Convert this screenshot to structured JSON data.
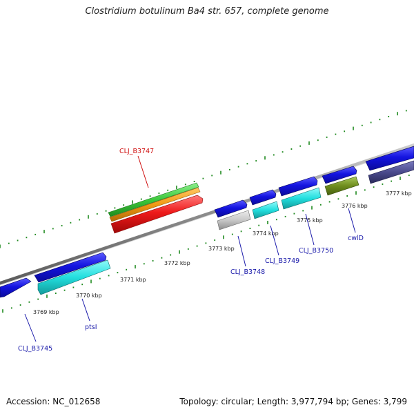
{
  "title": "Clostridium botulinum Ba4 str. 657, complete genome",
  "footer": {
    "accession": "Accession: NC_012658",
    "topology": "Topology: circular; Length: 3,977,794 bp; Genes: 3,799"
  },
  "colors": {
    "backbone": "#8c8c8c",
    "tick": "#1f8a1f",
    "label_blue": "#1a1aaa",
    "label_red": "#d01010",
    "cds_blue": "#1414e0",
    "cds_cyan": "#22dede",
    "gray_feature": "#c8c8c8",
    "rrna_green": "#3cc83c",
    "rrna_orange": "#f09a14",
    "rrna_red": "#ee1a1a",
    "olive": "#6e8c1e",
    "dark_slate": "#4a4a8c"
  },
  "kbp_labels": [
    "3769 kbp",
    "3770 kbp",
    "3771 kbp",
    "3772 kbp",
    "3773 kbp",
    "3774 kbp",
    "3775 kbp",
    "3776 kbp",
    "3777 kbp"
  ],
  "gene_labels": [
    {
      "id": "clj-b3745",
      "text": "CLJ_B3745",
      "color": "blue"
    },
    {
      "id": "ptsi",
      "text": "ptsI",
      "color": "blue"
    },
    {
      "id": "clj-b3747",
      "text": "CLJ_B3747",
      "color": "red"
    },
    {
      "id": "clj-b3748",
      "text": "CLJ_B3748",
      "color": "blue"
    },
    {
      "id": "clj-b3749",
      "text": "CLJ_B3749",
      "color": "blue"
    },
    {
      "id": "clj-b3750",
      "text": "CLJ_B3750",
      "color": "blue"
    },
    {
      "id": "cwld",
      "text": "cwlD",
      "color": "blue"
    }
  ]
}
